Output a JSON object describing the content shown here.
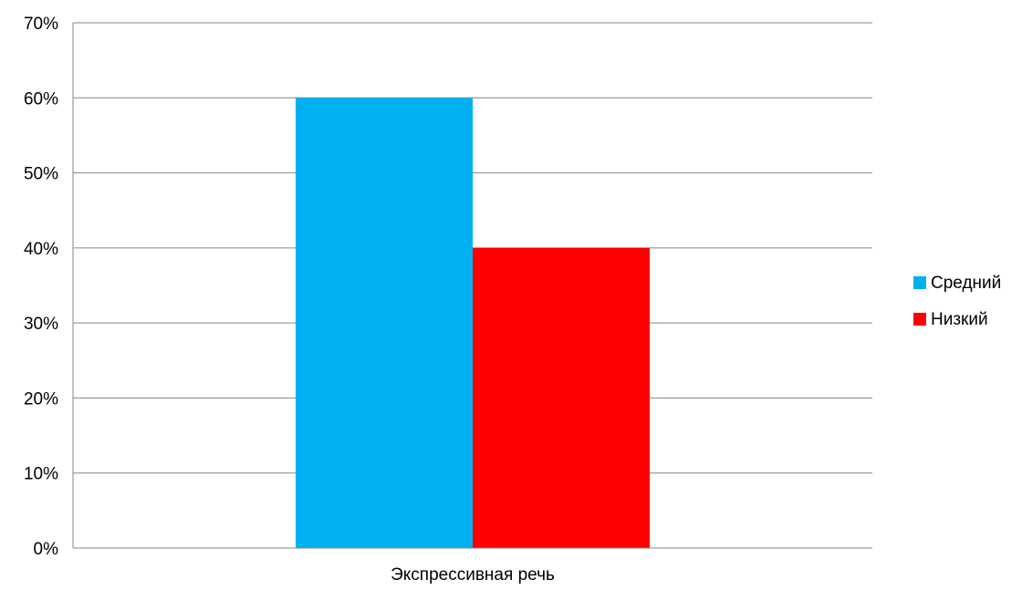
{
  "chart_data": {
    "type": "bar",
    "categories": [
      "Экспрессивная речь"
    ],
    "series": [
      {
        "name": "Средний",
        "values": [
          60
        ],
        "color": "#00B0F0"
      },
      {
        "name": "Низкий",
        "values": [
          40
        ],
        "color": "#FF0000"
      }
    ],
    "ylim": [
      0,
      70
    ],
    "yticks": [
      0,
      10,
      20,
      30,
      40,
      50,
      60,
      70
    ],
    "ytick_labels": [
      "0%",
      "10%",
      "20%",
      "30%",
      "40%",
      "50%",
      "60%",
      "70%"
    ],
    "grid": true,
    "legend_position": "right"
  }
}
